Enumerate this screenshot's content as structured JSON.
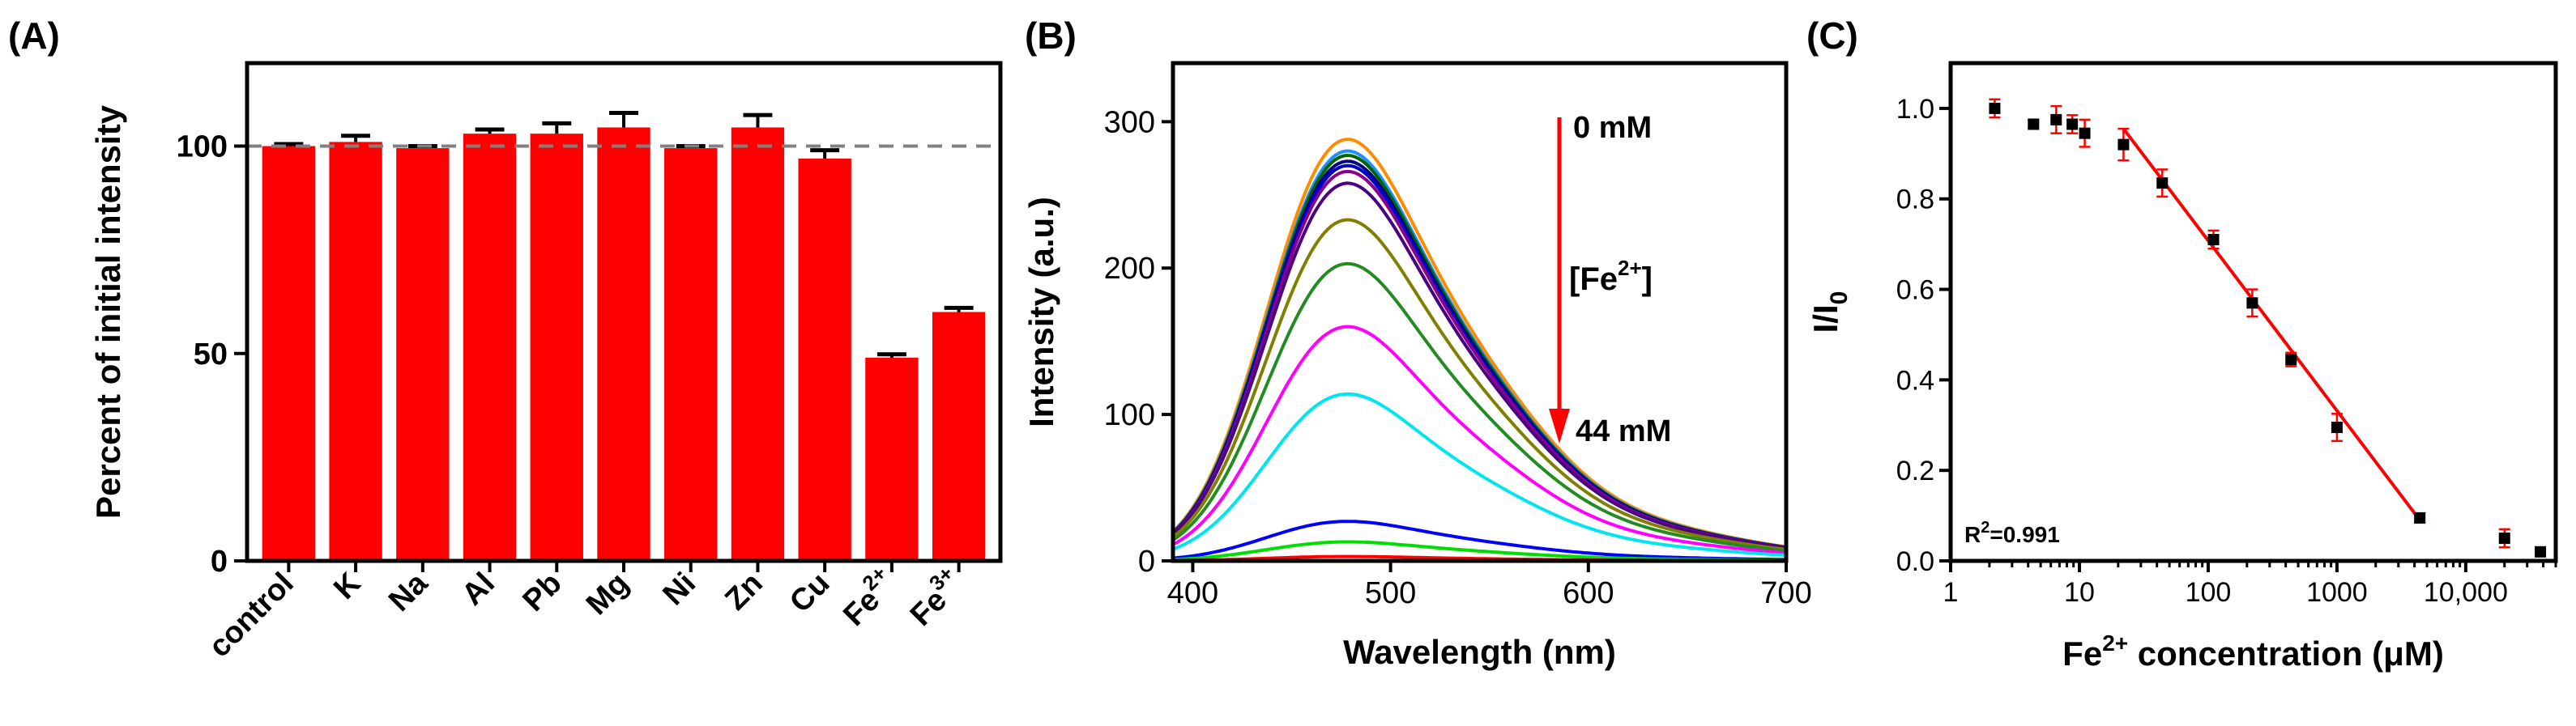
{
  "chart_data": [
    {
      "panel": "(A)",
      "type": "bar",
      "ylabel": "Percent of initial intensity",
      "xlabel": "",
      "ylim": [
        0,
        120
      ],
      "yticks": [
        0,
        50,
        100
      ],
      "reference_line": 100,
      "categories": [
        {
          "base": "control",
          "sup": ""
        },
        {
          "base": "K",
          "sup": ""
        },
        {
          "base": "Na",
          "sup": ""
        },
        {
          "base": "Al",
          "sup": ""
        },
        {
          "base": "Pb",
          "sup": ""
        },
        {
          "base": "Mg",
          "sup": ""
        },
        {
          "base": "Ni",
          "sup": ""
        },
        {
          "base": "Zn",
          "sup": ""
        },
        {
          "base": "Cu",
          "sup": ""
        },
        {
          "base": "Fe",
          "sup": "2+"
        },
        {
          "base": "Fe",
          "sup": "3+"
        }
      ],
      "values": [
        100,
        101,
        99.5,
        103,
        103,
        104.5,
        99.5,
        104.5,
        97,
        49,
        60
      ],
      "errors": [
        0.5,
        1.5,
        0.5,
        1,
        2.5,
        3.5,
        0.5,
        3,
        2,
        0.8,
        1
      ],
      "bar_color": "#ff0000",
      "ref_color": "#808080"
    },
    {
      "panel": "(B)",
      "type": "line",
      "xlabel": "Wavelength (nm)",
      "ylabel": "Intensity (a.u.)",
      "xlim": [
        390,
        700
      ],
      "ylim": [
        0,
        340
      ],
      "xticks": [
        400,
        500,
        600,
        700
      ],
      "yticks": [
        0,
        100,
        200,
        300
      ],
      "series_peaks": [
        {
          "peak": 288,
          "color": "#ff8c00"
        },
        {
          "peak": 280,
          "color": "#1e90ff"
        },
        {
          "peak": 277,
          "color": "#006400"
        },
        {
          "peak": 273,
          "color": "#000080"
        },
        {
          "peak": 270,
          "color": "#0000cd"
        },
        {
          "peak": 266,
          "color": "#8b008b"
        },
        {
          "peak": 258,
          "color": "#4b0082"
        },
        {
          "peak": 233,
          "color": "#808000"
        },
        {
          "peak": 203,
          "color": "#228b22"
        },
        {
          "peak": 160,
          "color": "#ff00ff"
        },
        {
          "peak": 114,
          "color": "#00e5ee"
        },
        {
          "peak": 27,
          "color": "#0000ff"
        },
        {
          "peak": 13,
          "color": "#00dd00"
        },
        {
          "peak": 3,
          "color": "#ff0000"
        }
      ],
      "annotation_top": "0 mM",
      "annotation_bottom": "44 mM",
      "annotation_label_base": "[Fe",
      "annotation_label_sup": "2+",
      "annotation_label_end": "]",
      "arrow_color": "#ff0000"
    },
    {
      "panel": "(C)",
      "type": "scatter",
      "xscale": "log",
      "xlabel_prefix": "Fe",
      "xlabel_sup": "2+",
      "xlabel_suffix": " concentration (μM)",
      "ylabel_main": "I/I",
      "ylabel_sub": "0",
      "xlim": [
        1,
        50000
      ],
      "ylim": [
        0,
        1.1
      ],
      "xticks": [
        {
          "v": 1,
          "label": "1"
        },
        {
          "v": 10,
          "label": "10"
        },
        {
          "v": 100,
          "label": "100"
        },
        {
          "v": 1000,
          "label": "1000"
        },
        {
          "v": 10000,
          "label": "10,000"
        }
      ],
      "yticks": [
        0.0,
        0.2,
        0.4,
        0.6,
        0.8,
        1.0
      ],
      "points": [
        {
          "x": 2.2,
          "y": 1.0,
          "err": 0.02
        },
        {
          "x": 4.4,
          "y": 0.965,
          "err": 0.01
        },
        {
          "x": 6.6,
          "y": 0.975,
          "err": 0.03
        },
        {
          "x": 8.8,
          "y": 0.965,
          "err": 0.02
        },
        {
          "x": 11,
          "y": 0.945,
          "err": 0.03
        },
        {
          "x": 22,
          "y": 0.92,
          "err": 0.035
        },
        {
          "x": 44,
          "y": 0.835,
          "err": 0.03
        },
        {
          "x": 110,
          "y": 0.71,
          "err": 0.02
        },
        {
          "x": 220,
          "y": 0.57,
          "err": 0.03
        },
        {
          "x": 440,
          "y": 0.445,
          "err": 0.015
        },
        {
          "x": 1000,
          "y": 0.295,
          "err": 0.03
        },
        {
          "x": 4400,
          "y": 0.095,
          "err": 0.01
        },
        {
          "x": 20000,
          "y": 0.05,
          "err": 0.02
        },
        {
          "x": 38000,
          "y": 0.02,
          "err": 0.005
        }
      ],
      "fit_line": {
        "x0": 22,
        "y0": 0.955,
        "x1": 4400,
        "y1": 0.09
      },
      "fit_color": "#ff0000",
      "err_color": "#ff0000",
      "r_squared_prefix": "R",
      "r_squared_sup": "2",
      "r_squared_value": "=0.991"
    }
  ]
}
